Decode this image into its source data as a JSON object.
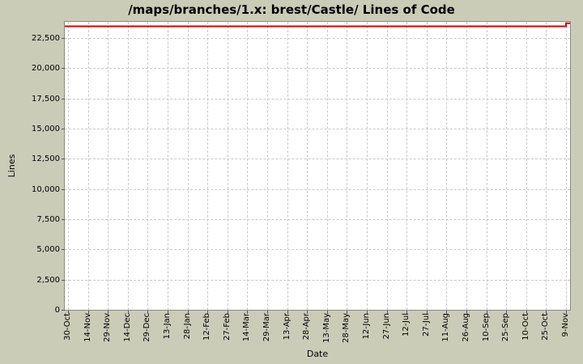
{
  "colors": {
    "background": "#cbccb8",
    "plot_background": "#ffffff",
    "plot_border": "#8a8a80",
    "gridline": "#c9c9c9",
    "series": "#dd0000",
    "tick": "#55555a",
    "text": "#000000"
  },
  "chart_data": {
    "type": "line",
    "title": "/maps/branches/1.x: brest/Castle/ Lines of Code",
    "xlabel": "Date",
    "ylabel": "Lines",
    "grid": true,
    "legend": false,
    "categories": [
      "30-Oct",
      "14-Nov",
      "29-Nov",
      "14-Dec",
      "29-Dec",
      "13-Jan",
      "28-Jan",
      "12-Feb",
      "27-Feb",
      "14-Mar",
      "29-Mar",
      "13-Apr",
      "28-Apr",
      "13-May",
      "28-May",
      "12-Jun",
      "27-Jun",
      "12-Jul",
      "27-Jul",
      "11-Aug",
      "26-Aug",
      "10-Sep",
      "25-Sep",
      "10-Oct",
      "25-Oct",
      "9-Nov"
    ],
    "series": [
      {
        "name": "Lines of Code",
        "values": [
          23470,
          23470,
          23470,
          23470,
          23470,
          23470,
          23470,
          23470,
          23470,
          23470,
          23470,
          23470,
          23470,
          23470,
          23470,
          23470,
          23470,
          23470,
          23470,
          23470,
          23470,
          23470,
          23470,
          23470,
          23470,
          23720
        ]
      }
    ],
    "ylim": [
      0,
      23840
    ],
    "ytick_values": [
      0,
      2500,
      5000,
      7500,
      10000,
      12500,
      15000,
      17500,
      20000,
      22500
    ],
    "ytick_labels": [
      "0",
      "2,500",
      "5,000",
      "7,500",
      "10,000",
      "12,500",
      "15,000",
      "17,500",
      "20,000",
      "22,500"
    ]
  }
}
